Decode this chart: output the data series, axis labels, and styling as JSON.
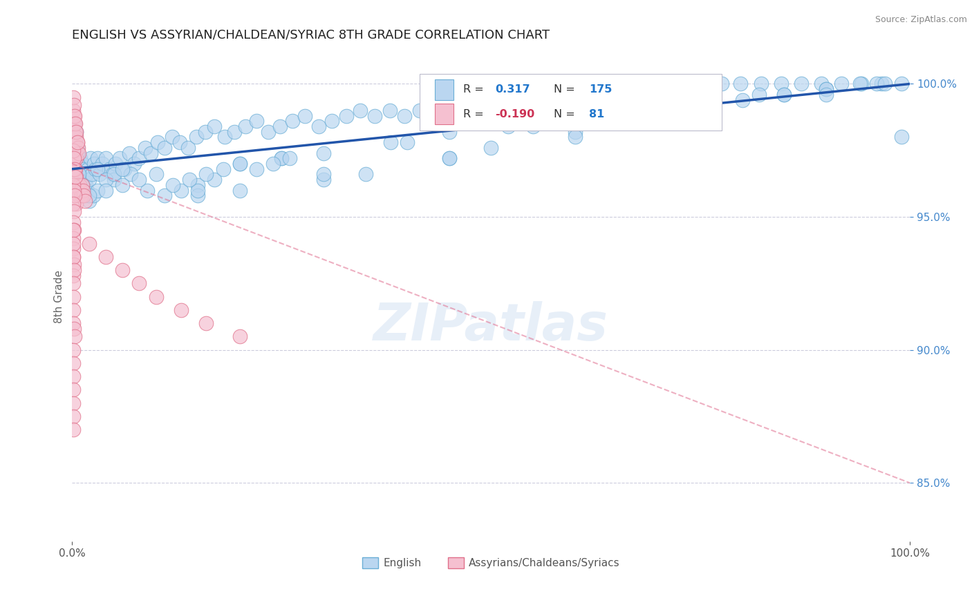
{
  "title": "ENGLISH VS ASSYRIAN/CHALDEAN/SYRIAC 8TH GRADE CORRELATION CHART",
  "source": "Source: ZipAtlas.com",
  "ylabel": "8th Grade",
  "watermark": "ZIPatlas",
  "xmin": 0.0,
  "xmax": 1.0,
  "ymin": 0.828,
  "ymax": 1.012,
  "yticks": [
    0.85,
    0.9,
    0.95,
    1.0
  ],
  "ytick_labels": [
    "85.0%",
    "90.0%",
    "95.0%",
    "100.0%"
  ],
  "xtick_labels": [
    "0.0%",
    "100.0%"
  ],
  "english_R": 0.317,
  "english_N": 175,
  "assyrian_R": -0.19,
  "assyrian_N": 81,
  "english_color": "#bad6f0",
  "english_edge_color": "#6aaed6",
  "assyrian_color": "#f5c0d0",
  "assyrian_edge_color": "#e0708a",
  "trend_english_color": "#2255aa",
  "trend_assyrian_color": "#e07090",
  "grid_color": "#ccccdd",
  "legend_r_color_english": "#2277cc",
  "legend_r_color_assyrian": "#cc3355",
  "title_color": "#222222",
  "axis_label_color": "#666666",
  "ytick_color": "#4488cc",
  "english_scatter_x": [
    0.002,
    0.003,
    0.003,
    0.004,
    0.004,
    0.005,
    0.005,
    0.005,
    0.006,
    0.006,
    0.007,
    0.007,
    0.008,
    0.008,
    0.009,
    0.009,
    0.01,
    0.01,
    0.011,
    0.011,
    0.012,
    0.013,
    0.014,
    0.015,
    0.016,
    0.017,
    0.018,
    0.019,
    0.02,
    0.022,
    0.024,
    0.026,
    0.028,
    0.03,
    0.033,
    0.036,
    0.04,
    0.044,
    0.048,
    0.052,
    0.057,
    0.062,
    0.068,
    0.074,
    0.08,
    0.087,
    0.094,
    0.102,
    0.11,
    0.119,
    0.128,
    0.138,
    0.148,
    0.159,
    0.17,
    0.182,
    0.194,
    0.207,
    0.22,
    0.234,
    0.248,
    0.263,
    0.278,
    0.294,
    0.31,
    0.327,
    0.344,
    0.361,
    0.379,
    0.397,
    0.415,
    0.434,
    0.453,
    0.472,
    0.492,
    0.512,
    0.532,
    0.553,
    0.574,
    0.595,
    0.616,
    0.638,
    0.66,
    0.682,
    0.705,
    0.728,
    0.751,
    0.775,
    0.798,
    0.822,
    0.846,
    0.87,
    0.894,
    0.918,
    0.942,
    0.966,
    0.99,
    0.03,
    0.05,
    0.07,
    0.09,
    0.11,
    0.13,
    0.15,
    0.17,
    0.2,
    0.25,
    0.3,
    0.38,
    0.45,
    0.52,
    0.6,
    0.68,
    0.75,
    0.82,
    0.9,
    0.96,
    0.15,
    0.2,
    0.3,
    0.35,
    0.45,
    0.5,
    0.6,
    0.65,
    0.7,
    0.75,
    0.8,
    0.85,
    0.9,
    0.94,
    0.97,
    0.004,
    0.008,
    0.012,
    0.016,
    0.02,
    0.025,
    0.03,
    0.04,
    0.05,
    0.06,
    0.25,
    0.4,
    0.55,
    0.7,
    0.85,
    0.99,
    0.15,
    0.3,
    0.45,
    0.6,
    0.75,
    0.9,
    0.02,
    0.04,
    0.06,
    0.08,
    0.1,
    0.12,
    0.14,
    0.16,
    0.18,
    0.2,
    0.22,
    0.24,
    0.26
  ],
  "english_scatter_y": [
    0.98,
    0.975,
    0.985,
    0.98,
    0.97,
    0.982,
    0.978,
    0.965,
    0.976,
    0.968,
    0.974,
    0.96,
    0.972,
    0.964,
    0.97,
    0.958,
    0.972,
    0.962,
    0.968,
    0.958,
    0.97,
    0.966,
    0.968,
    0.964,
    0.962,
    0.966,
    0.96,
    0.968,
    0.964,
    0.972,
    0.966,
    0.97,
    0.968,
    0.972,
    0.966,
    0.97,
    0.972,
    0.968,
    0.966,
    0.97,
    0.972,
    0.968,
    0.974,
    0.97,
    0.972,
    0.976,
    0.974,
    0.978,
    0.976,
    0.98,
    0.978,
    0.976,
    0.98,
    0.982,
    0.984,
    0.98,
    0.982,
    0.984,
    0.986,
    0.982,
    0.984,
    0.986,
    0.988,
    0.984,
    0.986,
    0.988,
    0.99,
    0.988,
    0.99,
    0.988,
    0.99,
    0.992,
    0.99,
    0.992,
    0.994,
    0.992,
    0.994,
    0.996,
    0.994,
    0.996,
    0.998,
    0.996,
    0.998,
    1.0,
    0.998,
    1.0,
    1.0,
    1.0,
    1.0,
    1.0,
    1.0,
    1.0,
    1.0,
    1.0,
    1.0,
    1.0,
    1.0,
    0.968,
    0.964,
    0.966,
    0.96,
    0.958,
    0.96,
    0.962,
    0.964,
    0.97,
    0.972,
    0.974,
    0.978,
    0.982,
    0.984,
    0.988,
    0.99,
    0.994,
    0.996,
    0.998,
    1.0,
    0.958,
    0.96,
    0.964,
    0.966,
    0.972,
    0.976,
    0.982,
    0.986,
    0.988,
    0.992,
    0.994,
    0.996,
    0.998,
    1.0,
    1.0,
    0.972,
    0.966,
    0.962,
    0.958,
    0.956,
    0.958,
    0.96,
    0.964,
    0.966,
    0.968,
    0.972,
    0.978,
    0.984,
    0.99,
    0.996,
    0.98,
    0.96,
    0.966,
    0.972,
    0.98,
    0.988,
    0.996,
    0.958,
    0.96,
    0.962,
    0.964,
    0.966,
    0.962,
    0.964,
    0.966,
    0.968,
    0.97,
    0.968,
    0.97,
    0.972
  ],
  "assyrian_scatter_x": [
    0.001,
    0.001,
    0.002,
    0.002,
    0.003,
    0.003,
    0.004,
    0.004,
    0.005,
    0.005,
    0.006,
    0.007,
    0.008,
    0.009,
    0.01,
    0.011,
    0.012,
    0.013,
    0.014,
    0.015,
    0.001,
    0.002,
    0.003,
    0.004,
    0.005,
    0.001,
    0.002,
    0.003,
    0.004,
    0.005,
    0.006,
    0.007,
    0.008,
    0.001,
    0.002,
    0.003,
    0.001,
    0.002,
    0.001,
    0.001,
    0.002,
    0.003,
    0.004,
    0.001,
    0.002,
    0.001,
    0.001,
    0.001,
    0.002,
    0.001,
    0.02,
    0.04,
    0.06,
    0.08,
    0.1,
    0.13,
    0.16,
    0.2,
    0.001,
    0.002,
    0.003,
    0.004,
    0.005,
    0.006,
    0.001,
    0.001,
    0.001,
    0.002,
    0.001,
    0.001,
    0.001,
    0.001,
    0.002,
    0.003,
    0.001,
    0.001,
    0.001,
    0.001,
    0.001,
    0.001,
    0.001
  ],
  "assyrian_scatter_y": [
    0.98,
    0.97,
    0.975,
    0.965,
    0.972,
    0.96,
    0.968,
    0.958,
    0.965,
    0.955,
    0.962,
    0.96,
    0.958,
    0.962,
    0.96,
    0.958,
    0.962,
    0.96,
    0.958,
    0.956,
    0.985,
    0.98,
    0.978,
    0.975,
    0.972,
    0.99,
    0.988,
    0.985,
    0.982,
    0.98,
    0.978,
    0.976,
    0.974,
    0.962,
    0.96,
    0.958,
    0.955,
    0.952,
    0.968,
    0.975,
    0.972,
    0.968,
    0.965,
    0.948,
    0.945,
    0.942,
    0.938,
    0.935,
    0.932,
    0.928,
    0.94,
    0.935,
    0.93,
    0.925,
    0.92,
    0.915,
    0.91,
    0.905,
    0.995,
    0.992,
    0.988,
    0.985,
    0.982,
    0.978,
    0.945,
    0.94,
    0.935,
    0.93,
    0.925,
    0.92,
    0.915,
    0.91,
    0.908,
    0.905,
    0.9,
    0.895,
    0.89,
    0.885,
    0.88,
    0.875,
    0.87
  ]
}
